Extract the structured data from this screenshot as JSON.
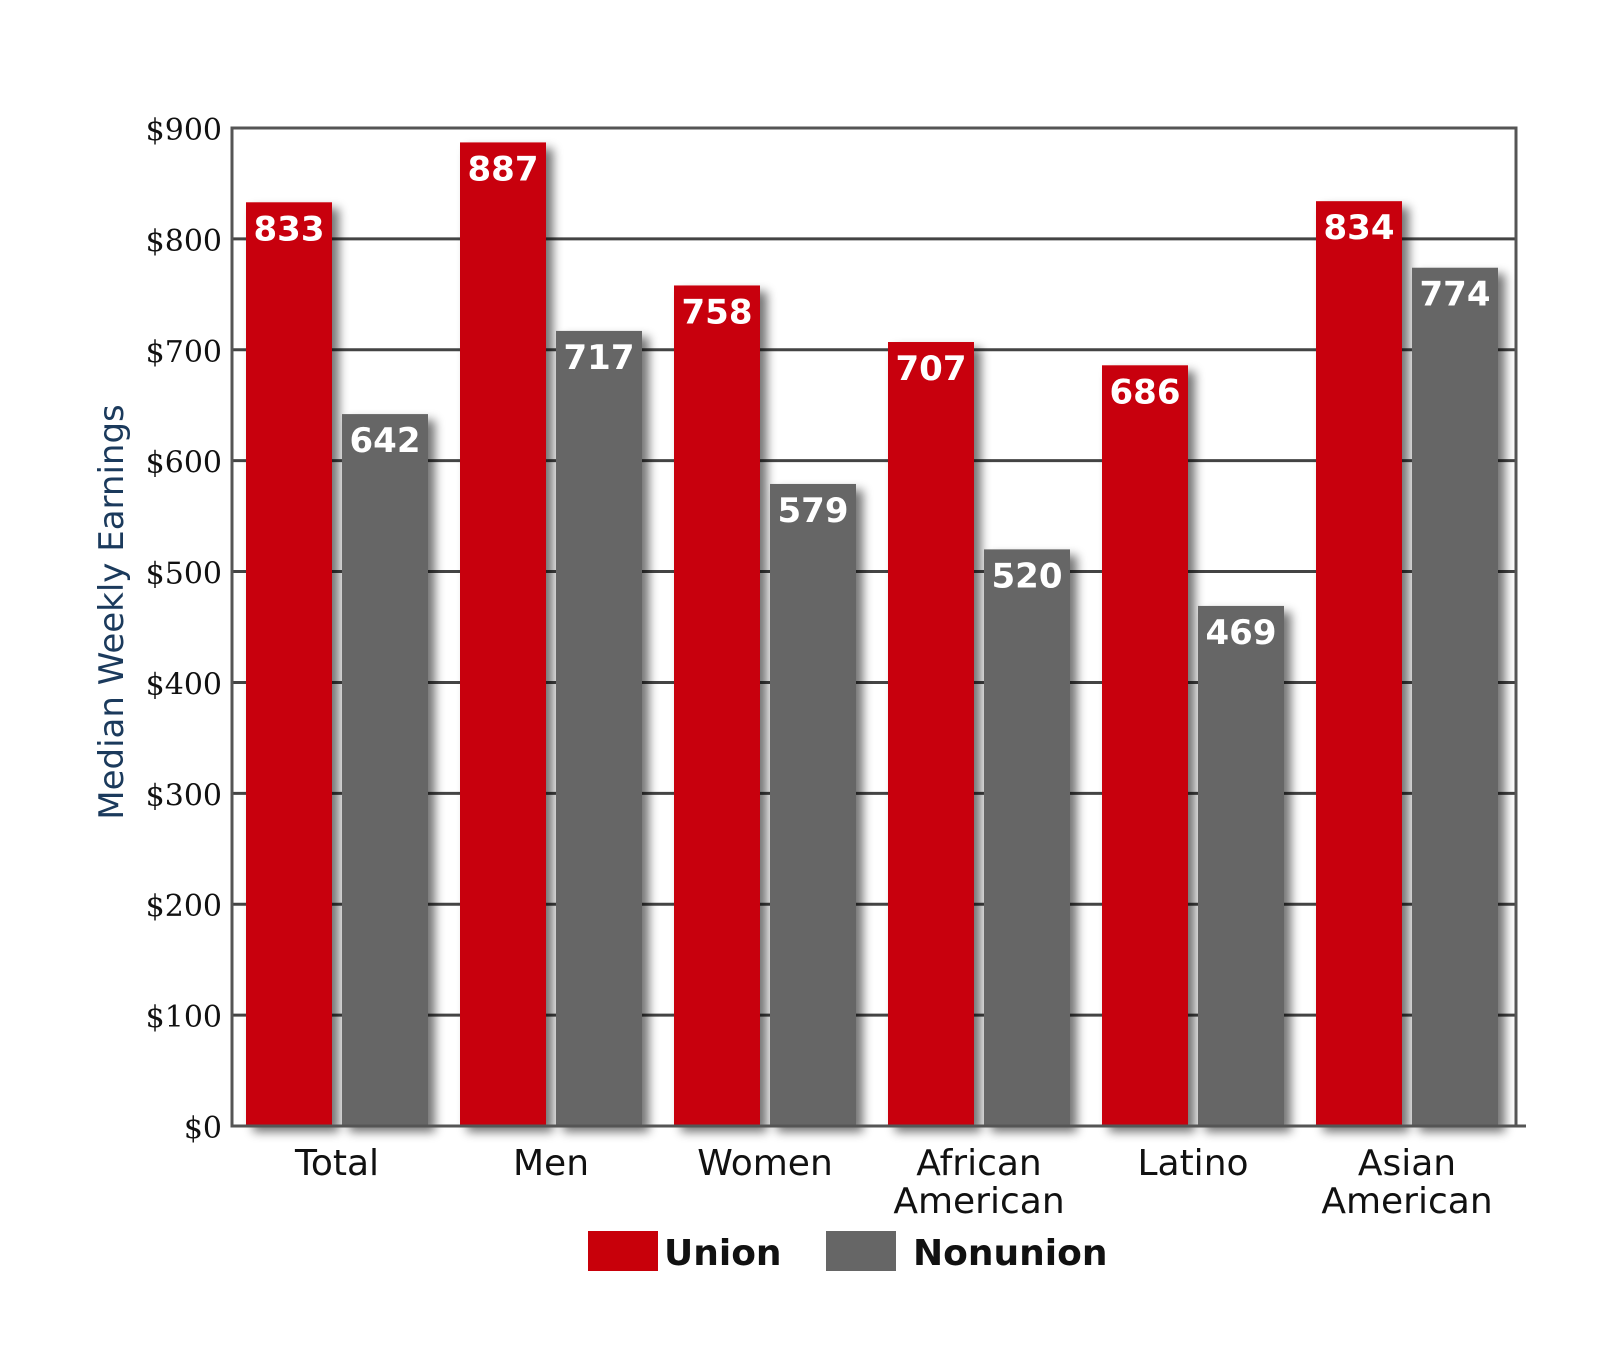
{
  "chart_data": {
    "type": "bar",
    "ylabel": "Median Weekly Earnings",
    "ylim": [
      0,
      900
    ],
    "yticks": [
      "$0",
      "$100",
      "$200",
      "$300",
      "$400",
      "$500",
      "$600",
      "$700",
      "$800",
      "$900"
    ],
    "categories": [
      [
        "Total"
      ],
      [
        "Men"
      ],
      [
        "Women"
      ],
      [
        "African",
        "American"
      ],
      [
        "Latino"
      ],
      [
        "Asian",
        "American"
      ]
    ],
    "series": [
      {
        "name": "Union",
        "color": "#c8000a",
        "values": [
          833,
          887,
          758,
          707,
          686,
          834
        ]
      },
      {
        "name": "Nonunion",
        "color": "#666666",
        "values": [
          642,
          717,
          579,
          520,
          469,
          774
        ]
      }
    ],
    "grid": true,
    "legend_position": "bottom"
  }
}
